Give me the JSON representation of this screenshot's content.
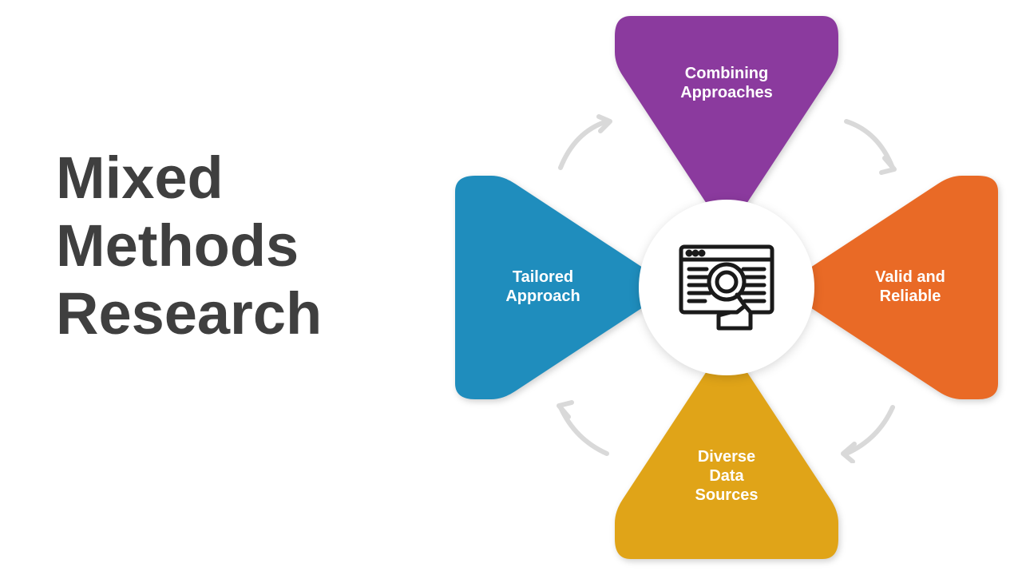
{
  "title": "Mixed\nMethods\nResearch",
  "diagram": {
    "type": "cycle-infographic",
    "center_icon": "magnifier-document",
    "background_color": "#ffffff",
    "arrow_color": "#d9d9d9",
    "center_circle_color": "#ffffff",
    "petals": [
      {
        "position": "top",
        "label": "Combining\nApproaches",
        "color": "#8b3a9e",
        "font_size": 20
      },
      {
        "position": "right",
        "label": "Valid and\nReliable",
        "color": "#e96a26",
        "font_size": 20
      },
      {
        "position": "bottom",
        "label": "Diverse\nData\nSources",
        "color": "#e0a418",
        "font_size": 20
      },
      {
        "position": "left",
        "label": "Tailored\nApproach",
        "color": "#1f8dbd",
        "font_size": 20
      }
    ],
    "title_color": "#3f3f3f",
    "title_fontsize": 74,
    "label_color": "#ffffff"
  }
}
